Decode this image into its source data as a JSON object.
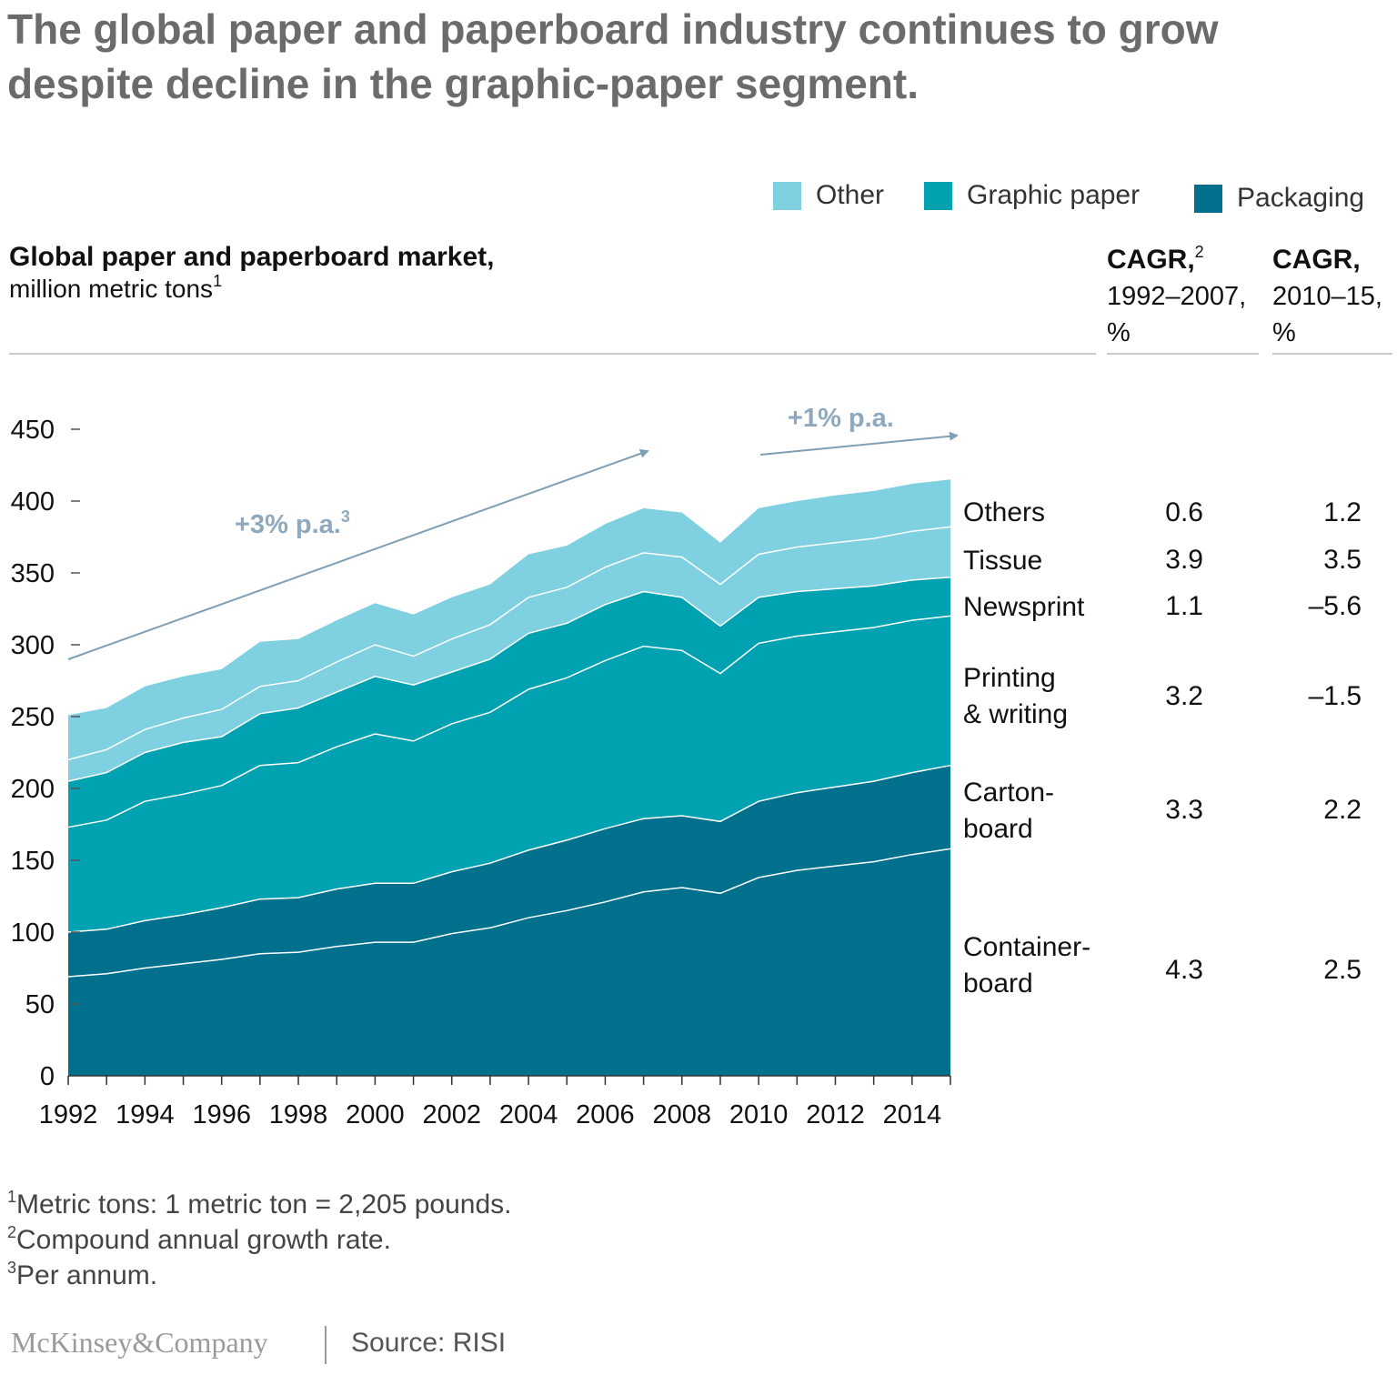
{
  "header": {
    "title_line1": "The global paper and paperboard industry continues to grow",
    "title_line2": "despite decline in the graphic-paper segment."
  },
  "legend": {
    "items": [
      {
        "label": "Other",
        "color": "#7fd0e0"
      },
      {
        "label": "Graphic paper",
        "color": "#00a1b0"
      },
      {
        "label": "Packaging",
        "color": "#00708c"
      }
    ]
  },
  "subheader": {
    "bold": "Global paper and paperboard market,",
    "unit": "million metric tons",
    "unit_sup": "1"
  },
  "cagr_headers": [
    {
      "bold": "CAGR,",
      "sup": "2",
      "period": "1992–2007,",
      "unit": "%"
    },
    {
      "bold": "CAGR,",
      "sup": "",
      "period": "2010–15,",
      "unit": "%"
    }
  ],
  "annotations": {
    "left_growth": "+3% p.a.",
    "left_growth_sup": "3",
    "right_growth": "+1% p.a."
  },
  "categories": [
    {
      "line1": "Others",
      "line2": "",
      "cagr_1992_2007": "0.6",
      "cagr_2010_15": "1.2"
    },
    {
      "line1": "Tissue",
      "line2": "",
      "cagr_1992_2007": "3.9",
      "cagr_2010_15": "3.5"
    },
    {
      "line1": "Newsprint",
      "line2": "",
      "cagr_1992_2007": "1.1",
      "cagr_2010_15": "–5.6"
    },
    {
      "line1": "Printing",
      "line2": "& writing",
      "cagr_1992_2007": "3.2",
      "cagr_2010_15": "–1.5"
    },
    {
      "line1": "Carton-",
      "line2": "board",
      "cagr_1992_2007": "3.3",
      "cagr_2010_15": "2.2"
    },
    {
      "line1": "Container-",
      "line2": "board",
      "cagr_1992_2007": "4.3",
      "cagr_2010_15": "2.5"
    }
  ],
  "footnotes": [
    {
      "sup": "1",
      "text": "Metric tons: 1 metric ton = 2,205 pounds."
    },
    {
      "sup": "2",
      "text": "Compound annual growth rate."
    },
    {
      "sup": "3",
      "text": "Per annum."
    }
  ],
  "brand": {
    "logo": "McKinsey&Company",
    "source": "Source: RISI"
  },
  "chart_data": {
    "type": "area",
    "stacked": true,
    "title": "Global paper and paperboard market, million metric tons",
    "xlabel": "",
    "ylabel": "",
    "ylim": [
      0,
      450
    ],
    "yticks": [
      0,
      50,
      100,
      150,
      200,
      250,
      300,
      350,
      400,
      450
    ],
    "x": [
      1992,
      1993,
      1994,
      1995,
      1996,
      1997,
      1998,
      1999,
      2000,
      2001,
      2002,
      2003,
      2004,
      2005,
      2006,
      2007,
      2008,
      2009,
      2010,
      2011,
      2012,
      2013,
      2014,
      2015
    ],
    "xtick_labels": [
      "1992",
      "1994",
      "1996",
      "1998",
      "2000",
      "2002",
      "2004",
      "2006",
      "2008",
      "2010",
      "2012",
      "2014"
    ],
    "series": [
      {
        "name": "Container-board",
        "group": "Packaging",
        "color": "#00708c",
        "values": [
          69,
          71,
          75,
          78,
          81,
          85,
          86,
          90,
          93,
          93,
          99,
          103,
          110,
          115,
          121,
          128,
          131,
          127,
          138,
          143,
          146,
          149,
          154,
          158
        ]
      },
      {
        "name": "Carton-board",
        "group": "Packaging",
        "color": "#00708c",
        "values": [
          31,
          31,
          33,
          34,
          36,
          38,
          38,
          40,
          41,
          41,
          43,
          45,
          47,
          49,
          51,
          51,
          50,
          50,
          53,
          54,
          55,
          56,
          57,
          58
        ]
      },
      {
        "name": "Printing & writing",
        "group": "Graphic paper",
        "color": "#00a1b0",
        "values": [
          73,
          76,
          83,
          84,
          85,
          93,
          94,
          99,
          104,
          99,
          103,
          105,
          112,
          113,
          117,
          120,
          115,
          103,
          110,
          109,
          108,
          107,
          106,
          104
        ]
      },
      {
        "name": "Newsprint",
        "group": "Graphic paper",
        "color": "#00a1b0",
        "values": [
          32,
          33,
          34,
          36,
          34,
          36,
          38,
          38,
          40,
          39,
          36,
          37,
          39,
          38,
          39,
          38,
          37,
          33,
          32,
          31,
          30,
          29,
          28,
          27
        ]
      },
      {
        "name": "Tissue",
        "group": "Other",
        "color": "#7fd0e0",
        "values": [
          15,
          16,
          16,
          17,
          19,
          19,
          19,
          21,
          22,
          20,
          23,
          24,
          25,
          25,
          26,
          27,
          28,
          29,
          30,
          31,
          32,
          33,
          34,
          35
        ]
      },
      {
        "name": "Others",
        "group": "Other",
        "color": "#7fd0e0",
        "values": [
          31,
          29,
          30,
          29,
          28,
          31,
          29,
          29,
          29,
          29,
          29,
          28,
          30,
          29,
          30,
          31,
          31,
          29,
          32,
          32,
          33,
          33,
          33,
          33
        ]
      }
    ],
    "grid": false
  }
}
